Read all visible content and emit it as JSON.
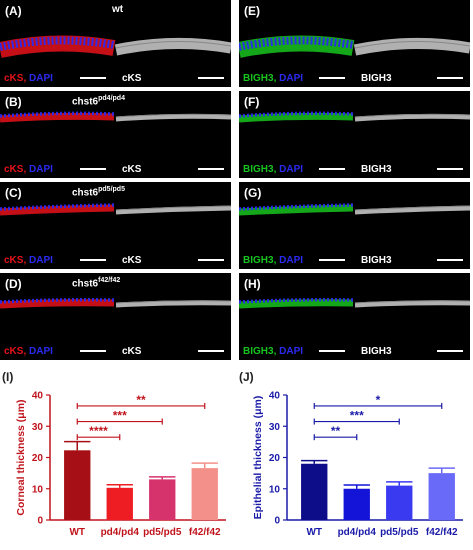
{
  "panels": [
    {
      "label": "(A)",
      "title": "wt",
      "title_sup": "",
      "left_stain": "cKS",
      "left_stain_color": "#e8121a",
      "right_caption": "cKS"
    },
    {
      "label": "(E)",
      "title": "",
      "title_sup": "",
      "left_stain": "BIGH3",
      "left_stain_color": "#17c41f",
      "right_caption": "BIGH3"
    },
    {
      "label": "(B)",
      "title": "chst6",
      "title_sup": "pd4/pd4",
      "left_stain": "cKS",
      "left_stain_color": "#e8121a",
      "right_caption": "cKS"
    },
    {
      "label": "(F)",
      "title": "",
      "title_sup": "",
      "left_stain": "BIGH3",
      "left_stain_color": "#17c41f",
      "right_caption": "BIGH3"
    },
    {
      "label": "(C)",
      "title": "chst6",
      "title_sup": "pd5/pd5",
      "left_stain": "cKS",
      "left_stain_color": "#e8121a",
      "right_caption": "cKS"
    },
    {
      "label": "(G)",
      "title": "",
      "title_sup": "",
      "left_stain": "BIGH3",
      "left_stain_color": "#17c41f",
      "right_caption": "BIGH3"
    },
    {
      "label": "(D)",
      "title": "chst6",
      "title_sup": "f42/f42",
      "left_stain": "cKS",
      "left_stain_color": "#e8121a",
      "right_caption": "cKS"
    },
    {
      "label": "(H)",
      "title": "",
      "title_sup": "",
      "left_stain": "BIGH3",
      "left_stain_color": "#17c41f",
      "right_caption": "BIGH3"
    }
  ],
  "dapi_label": "DAPI",
  "dapi_color": "#2a2af0",
  "chart_data": [
    {
      "panel_label": "(I)",
      "type": "bar",
      "categories": [
        "WT",
        "pd4/pd4",
        "pd5/pd5",
        "f42/f42"
      ],
      "values": [
        22.3,
        10.3,
        13.0,
        16.6
      ],
      "errors": [
        2.8,
        1.0,
        0.8,
        1.6
      ],
      "colors": [
        "#a50f15",
        "#ee1d23",
        "#d6336c",
        "#f4908a"
      ],
      "ylabel": "Corneal thickness (μm)",
      "ylim": [
        0,
        40
      ],
      "yticks": [
        "0",
        "10",
        "20",
        "30",
        "40"
      ],
      "axis_color": "#c0141c",
      "significance": [
        {
          "to": 3,
          "stars": "**"
        },
        {
          "to": 2,
          "stars": "***"
        },
        {
          "to": 1,
          "stars": "****"
        }
      ]
    },
    {
      "panel_label": "(J)",
      "type": "bar",
      "categories": [
        "WT",
        "pd4/pd4",
        "pd5/pd5",
        "f42/f42"
      ],
      "values": [
        18.0,
        10.0,
        11.0,
        15.0
      ],
      "errors": [
        1.0,
        1.2,
        1.2,
        1.6
      ],
      "colors": [
        "#0d0d8a",
        "#1414d8",
        "#3a3af0",
        "#6a6af8"
      ],
      "ylabel": "Epithelial thickness (μm)",
      "ylim": [
        0,
        40
      ],
      "yticks": [
        "0",
        "10",
        "20",
        "30",
        "40"
      ],
      "axis_color": "#1a1aa8",
      "significance": [
        {
          "to": 3,
          "stars": "*"
        },
        {
          "to": 2,
          "stars": "***"
        },
        {
          "to": 1,
          "stars": "**"
        }
      ]
    }
  ]
}
